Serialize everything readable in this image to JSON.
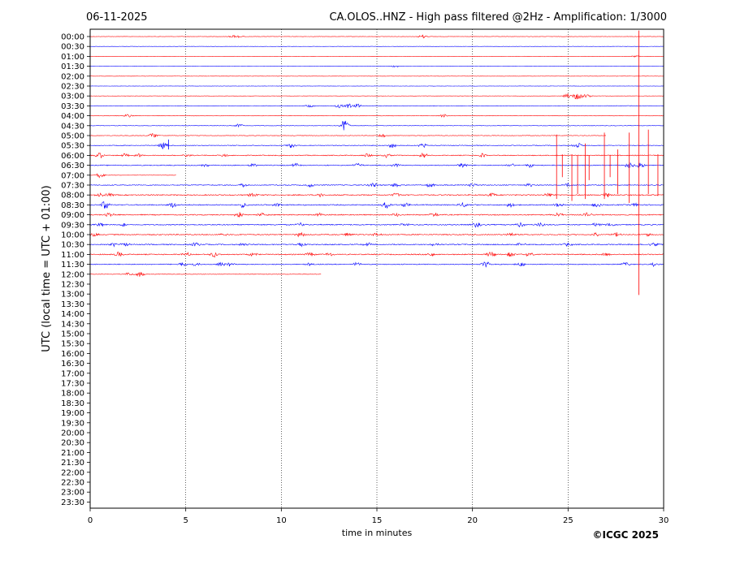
{
  "header": {
    "date": "06-11-2025",
    "title": "CA.OLOS..HNZ - High pass filtered @2Hz - Amplification: 1/3000"
  },
  "copyright": "©ICGC 2025",
  "colors": {
    "odd": "#ff0000",
    "even": "#0000ff",
    "frame": "#000000",
    "grid": "#000000"
  },
  "chart_data": {
    "type": "line",
    "title": "CA.OLOS..HNZ - High pass filtered @2Hz - Amplification: 1/3000",
    "xlabel": "time in minutes",
    "ylabel": "UTC (local time = UTC + 01:00)",
    "xlim": [
      0,
      30
    ],
    "x_ticks": [
      "0",
      "5",
      "10",
      "15",
      "20",
      "25",
      "30"
    ],
    "x_tick_values": [
      0,
      5,
      10,
      15,
      20,
      25,
      30
    ],
    "grid": "vertical dotted at 5-minute intervals",
    "row_labels": [
      "00:00",
      "00:30",
      "01:00",
      "01:30",
      "02:00",
      "02:30",
      "03:00",
      "03:30",
      "04:00",
      "04:30",
      "05:00",
      "05:30",
      "06:00",
      "06:30",
      "07:00",
      "07:30",
      "08:00",
      "08:30",
      "09:00",
      "09:30",
      "10:00",
      "10:30",
      "11:00",
      "11:30",
      "12:00",
      "12:30",
      "13:00",
      "13:30",
      "14:00",
      "14:30",
      "15:00",
      "15:30",
      "16:00",
      "16:30",
      "17:00",
      "17:30",
      "18:00",
      "18:30",
      "19:00",
      "19:30",
      "20:00",
      "20:30",
      "21:00",
      "21:30",
      "22:00",
      "22:30",
      "23:00",
      "23:30"
    ],
    "traces": [
      {
        "row": "00:00",
        "end": 30,
        "noise": 0.2,
        "events": [
          [
            7.5,
            0.8
          ],
          [
            7.8,
            0.6
          ],
          [
            17.4,
            1.2
          ]
        ]
      },
      {
        "row": "00:30",
        "end": 30,
        "noise": 0.15,
        "events": []
      },
      {
        "row": "01:00",
        "end": 30,
        "noise": 0.15,
        "events": [
          [
            28.5,
            0.5
          ]
        ]
      },
      {
        "row": "01:30",
        "end": 30,
        "noise": 0.15,
        "events": [
          [
            16,
            0.6
          ]
        ]
      },
      {
        "row": "02:00",
        "end": 30,
        "noise": 0.15,
        "events": []
      },
      {
        "row": "02:30",
        "end": 30,
        "noise": 0.15,
        "events": []
      },
      {
        "row": "03:00",
        "end": 30,
        "noise": 0.2,
        "events": [
          [
            25,
            1.5
          ],
          [
            25.5,
            2.5
          ],
          [
            26,
            1.2
          ]
        ]
      },
      {
        "row": "03:30",
        "end": 30,
        "noise": 0.3,
        "events": [
          [
            11.5,
            0.8
          ],
          [
            13,
            1.2
          ],
          [
            13.5,
            1.5
          ],
          [
            14,
            1.2
          ]
        ]
      },
      {
        "row": "04:00",
        "end": 30,
        "noise": 0.25,
        "events": [
          [
            2,
            1
          ],
          [
            18.5,
            1
          ]
        ]
      },
      {
        "row": "04:30",
        "end": 30,
        "noise": 0.25,
        "events": [
          [
            7.8,
            1.2
          ],
          [
            13.3,
            3.5
          ]
        ]
      },
      {
        "row": "05:00",
        "end": 27,
        "noise": 0.3,
        "events": [
          [
            3.3,
            1.5
          ],
          [
            15.3,
            1
          ]
        ]
      },
      {
        "row": "05:30",
        "end": 30,
        "noise": 0.4,
        "events": [
          [
            3.8,
            2
          ],
          [
            10.5,
            1.5
          ],
          [
            15.8,
            1.5
          ],
          [
            17.4,
            1.2
          ],
          [
            25.5,
            1.8
          ]
        ]
      },
      {
        "row": "06:00",
        "end": 30,
        "noise": 0.5,
        "events": [
          [
            0.5,
            1.8
          ],
          [
            1.8,
            1
          ],
          [
            2.5,
            1.2
          ],
          [
            5,
            1
          ],
          [
            7,
            1
          ],
          [
            14.5,
            1.2
          ],
          [
            15.5,
            1.2
          ],
          [
            17.4,
            1.5
          ],
          [
            20.5,
            1.2
          ]
        ]
      },
      {
        "row": "06:30",
        "end": 30,
        "noise": 0.5,
        "events": [
          [
            6,
            1
          ],
          [
            8.5,
            1.2
          ],
          [
            10.8,
            1.5
          ],
          [
            14,
            1.2
          ],
          [
            16,
            1.2
          ],
          [
            19.5,
            1.5
          ],
          [
            22,
            1.2
          ],
          [
            23,
            1.2
          ],
          [
            28.2,
            2
          ],
          [
            28.8,
            2
          ]
        ]
      },
      {
        "row": "07:00",
        "end": 4.5,
        "noise": 0.15,
        "events": [
          [
            0.5,
            1.5
          ]
        ]
      },
      {
        "row": "07:30",
        "end": 30,
        "noise": 0.5,
        "events": [
          [
            8,
            1
          ],
          [
            11.5,
            1.2
          ],
          [
            14.8,
            1.8
          ],
          [
            16,
            1.5
          ],
          [
            17.8,
            1.2
          ],
          [
            20,
            1.2
          ],
          [
            23,
            1.2
          ],
          [
            25,
            1.2
          ]
        ]
      },
      {
        "row": "08:00",
        "end": 30,
        "noise": 0.6,
        "events": [
          [
            0.5,
            1.2
          ],
          [
            1,
            1
          ],
          [
            8.5,
            1.2
          ],
          [
            12,
            1.2
          ],
          [
            16,
            1.2
          ],
          [
            21,
            1.2
          ],
          [
            24,
            1.2
          ],
          [
            27,
            1.5
          ]
        ]
      },
      {
        "row": "08:30",
        "end": 30,
        "noise": 0.6,
        "events": [
          [
            0.8,
            2.5
          ],
          [
            4.3,
            1.5
          ],
          [
            8,
            1.5
          ],
          [
            9.8,
            1.2
          ],
          [
            15.5,
            2
          ],
          [
            16.5,
            1.2
          ],
          [
            19.5,
            1.5
          ],
          [
            22,
            1.5
          ],
          [
            24.5,
            1.2
          ],
          [
            26.5,
            1.2
          ],
          [
            28.5,
            1.2
          ]
        ]
      },
      {
        "row": "09:00",
        "end": 30,
        "noise": 0.6,
        "events": [
          [
            1,
            1.2
          ],
          [
            7.8,
            1.5
          ],
          [
            9,
            1.2
          ],
          [
            12,
            1
          ],
          [
            16,
            1.2
          ],
          [
            18,
            1.2
          ],
          [
            24.5,
            1.5
          ],
          [
            26,
            1.2
          ]
        ]
      },
      {
        "row": "09:30",
        "end": 30,
        "noise": 0.6,
        "events": [
          [
            0.5,
            1.2
          ],
          [
            1.8,
            1.2
          ],
          [
            11,
            1.2
          ],
          [
            16.5,
            1
          ],
          [
            20.2,
            1.5
          ],
          [
            22.5,
            1.5
          ],
          [
            23.5,
            1.2
          ],
          [
            26.5,
            1.2
          ],
          [
            27.2,
            1.2
          ]
        ]
      },
      {
        "row": "10:00",
        "end": 30,
        "noise": 0.6,
        "events": [
          [
            0.2,
            1.2
          ],
          [
            7,
            1
          ],
          [
            11,
            1.5
          ],
          [
            13.5,
            1.2
          ],
          [
            15,
            1
          ],
          [
            22,
            1.2
          ],
          [
            26.5,
            1.2
          ],
          [
            27.5,
            1.2
          ],
          [
            29.2,
            1.2
          ]
        ]
      },
      {
        "row": "10:30",
        "end": 30,
        "noise": 0.6,
        "events": [
          [
            1.2,
            1.2
          ],
          [
            1.8,
            1
          ],
          [
            5.5,
            1.2
          ],
          [
            8,
            1.2
          ],
          [
            11,
            1.2
          ],
          [
            14.5,
            1.2
          ],
          [
            18,
            1
          ],
          [
            22.5,
            1.2
          ],
          [
            25,
            1
          ],
          [
            29.5,
            1
          ]
        ]
      },
      {
        "row": "11:00",
        "end": 30,
        "noise": 0.6,
        "events": [
          [
            1.5,
            1.5
          ],
          [
            5,
            1.2
          ],
          [
            6.5,
            1.8
          ],
          [
            8.5,
            1.2
          ],
          [
            11.5,
            1.2
          ],
          [
            12.5,
            1.2
          ],
          [
            17.8,
            1.2
          ],
          [
            21,
            1.8
          ],
          [
            22,
            1.5
          ],
          [
            23,
            1.2
          ],
          [
            27,
            1
          ]
        ]
      },
      {
        "row": "11:30",
        "end": 30,
        "noise": 0.5,
        "events": [
          [
            4.8,
            1.2
          ],
          [
            5.5,
            1.2
          ],
          [
            6.8,
            1.2
          ],
          [
            7.3,
            1.2
          ],
          [
            11.5,
            1
          ],
          [
            14,
            1.2
          ],
          [
            20.7,
            2
          ],
          [
            22.5,
            1.2
          ],
          [
            28,
            1.2
          ],
          [
            29.5,
            1.2
          ]
        ]
      },
      {
        "row": "12:00",
        "end": 12.1,
        "noise": 0.25,
        "events": [
          [
            2,
            1
          ],
          [
            2.6,
            1.5
          ]
        ]
      }
    ],
    "spikes": [
      {
        "row": "05:30",
        "x": 4.1,
        "up": 0.6,
        "down": 0.4,
        "series": "even"
      },
      {
        "row": "06:30",
        "x": 24.4,
        "up": 3.1,
        "down": 3.4,
        "series": "odd"
      },
      {
        "row": "06:30",
        "x": 24.7,
        "up": 1.1,
        "down": 1.2,
        "series": "odd"
      },
      {
        "row": "06:30",
        "x": 25.2,
        "up": 1.1,
        "down": 3.6,
        "series": "odd"
      },
      {
        "row": "06:30",
        "x": 25.5,
        "up": 1.0,
        "down": 2.9,
        "series": "odd"
      },
      {
        "row": "06:30",
        "x": 25.9,
        "up": 2.2,
        "down": 3.4,
        "series": "odd"
      },
      {
        "row": "06:30",
        "x": 26.1,
        "up": 1.0,
        "down": 1.5,
        "series": "odd"
      },
      {
        "row": "06:30",
        "x": 26.9,
        "up": 3.3,
        "down": 3.4,
        "series": "odd"
      },
      {
        "row": "06:30",
        "x": 27.2,
        "up": 1.0,
        "down": 1.2,
        "series": "odd"
      },
      {
        "row": "06:30",
        "x": 27.6,
        "up": 1.6,
        "down": 2.9,
        "series": "odd"
      },
      {
        "row": "06:30",
        "x": 28.2,
        "up": 3.3,
        "down": 3.8,
        "series": "odd"
      },
      {
        "row": "06:30",
        "x": 28.7,
        "up": 13.6,
        "down": 13.1,
        "series": "odd"
      },
      {
        "row": "06:30",
        "x": 29.2,
        "up": 3.6,
        "down": 2.9,
        "series": "odd"
      },
      {
        "row": "06:30",
        "x": 29.7,
        "up": 1.1,
        "down": 3.1,
        "series": "odd"
      },
      {
        "row": "06:30",
        "x": 30,
        "up": 3.3,
        "down": 3.3,
        "series": "odd"
      }
    ]
  }
}
